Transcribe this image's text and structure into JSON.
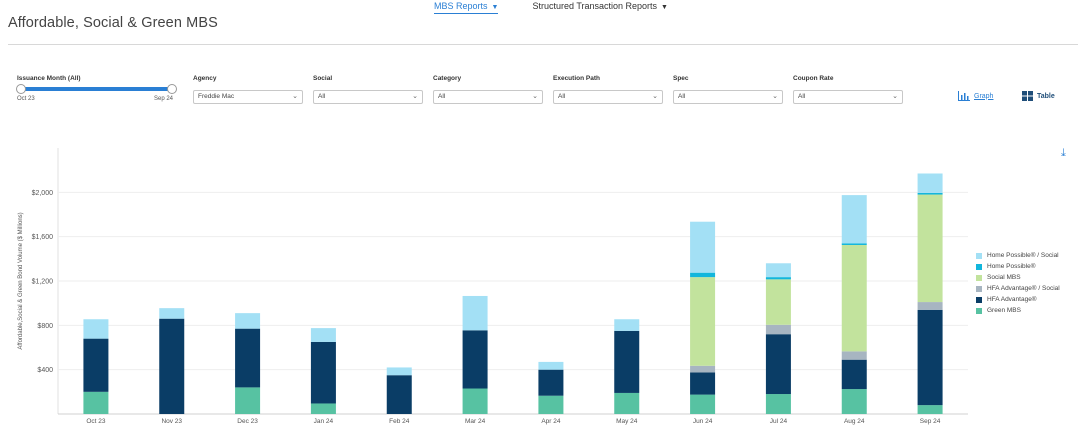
{
  "header": {
    "title": "Affordable, Social & Green MBS",
    "nav": [
      {
        "label": "MBS Reports",
        "active": true
      },
      {
        "label": "Structured Transaction Reports",
        "active": false
      }
    ]
  },
  "filters": {
    "issuance": {
      "label": "Issuance Month (All)",
      "start": "Oct 23",
      "end": "Sep 24"
    },
    "agency": {
      "label": "Agency",
      "value": "Freddie Mac"
    },
    "social": {
      "label": "Social",
      "value": "All"
    },
    "category": {
      "label": "Category",
      "value": "All"
    },
    "execution_path": {
      "label": "Execution Path",
      "value": "All"
    },
    "spec": {
      "label": "Spec",
      "value": "All"
    },
    "coupon_rate": {
      "label": "Coupon Rate",
      "value": "All"
    }
  },
  "view": {
    "graph_label": "Graph",
    "table_label": "Table"
  },
  "colors": {
    "accent": "#2a7fd4",
    "Home Possible® / Social": "#a3e0f5",
    "Home Possible®": "#12b6dc",
    "Social MBS": "#c2e39d",
    "HFA Advantage® / Social": "#a7b5c1",
    "HFA Advantage®": "#0a3d66",
    "Green MBS": "#57c2a2"
  },
  "chart_data": {
    "type": "bar",
    "stacked": true,
    "ylabel": "Affordable,Social & Green Bond Volume ($ Millions)",
    "ylim": [
      0,
      2400
    ],
    "yticks": [
      400,
      800,
      1200,
      1600,
      2000
    ],
    "ytick_labels": [
      "$400",
      "$800",
      "$1,200",
      "$1,600",
      "$2,000"
    ],
    "categories": [
      "Oct 23",
      "Nov 23",
      "Dec 23",
      "Jan 24",
      "Feb 24",
      "Mar 24",
      "Apr 24",
      "May 24",
      "Jun 24",
      "Jul 24",
      "Aug 24",
      "Sep 24"
    ],
    "series": [
      {
        "name": "Green MBS",
        "values": [
          200,
          0,
          240,
          95,
          0,
          230,
          165,
          190,
          175,
          180,
          225,
          80
        ]
      },
      {
        "name": "HFA Advantage®",
        "values": [
          480,
          860,
          530,
          555,
          350,
          525,
          235,
          560,
          200,
          540,
          265,
          860
        ]
      },
      {
        "name": "HFA Advantage® / Social",
        "values": [
          0,
          0,
          0,
          0,
          0,
          0,
          0,
          0,
          60,
          85,
          75,
          70
        ]
      },
      {
        "name": "Social MBS",
        "values": [
          0,
          0,
          0,
          0,
          0,
          0,
          0,
          0,
          800,
          410,
          960,
          970
        ]
      },
      {
        "name": "Home Possible®",
        "values": [
          0,
          0,
          0,
          0,
          0,
          0,
          0,
          0,
          40,
          20,
          15,
          15
        ]
      },
      {
        "name": "Home Possible® / Social",
        "values": [
          175,
          95,
          140,
          125,
          70,
          310,
          70,
          105,
          460,
          125,
          435,
          175
        ]
      }
    ],
    "legend": [
      "Home Possible® / Social",
      "Home Possible®",
      "Social MBS",
      "HFA Advantage® / Social",
      "HFA Advantage®",
      "Green MBS"
    ],
    "legend_position": "right",
    "grid": true
  }
}
